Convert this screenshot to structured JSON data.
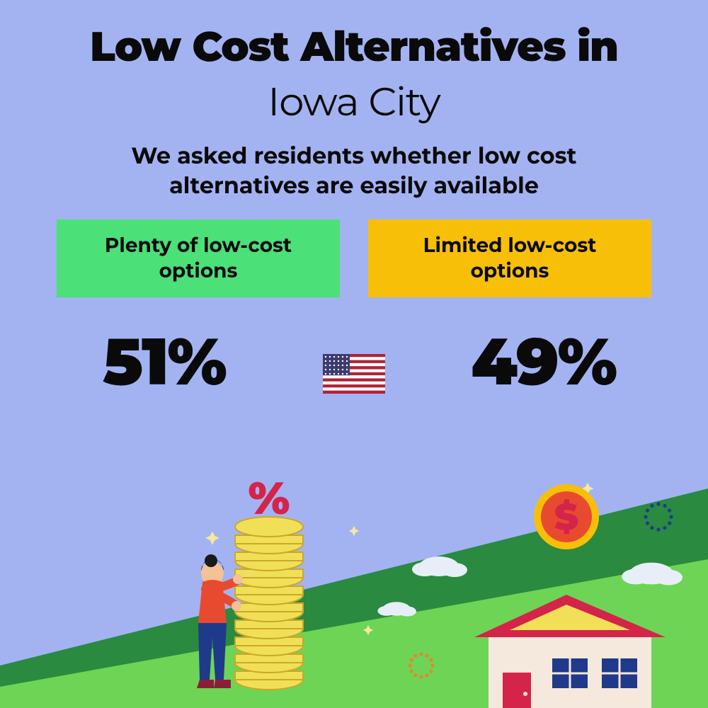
{
  "layout": {
    "background_color": "#a3b3f2",
    "text_color": "#0a0a0a"
  },
  "title": {
    "line1": "Low Cost Alternatives in",
    "line1_fontsize": 58,
    "line1_weight": 900,
    "line2": "Iowa City",
    "line2_fontsize": 56,
    "line2_weight": 400
  },
  "subtitle": {
    "text": "We asked residents whether low cost alternatives are easily available",
    "fontsize": 32,
    "weight": 700
  },
  "options": {
    "left": {
      "label": "Plenty of low-cost options",
      "bg_color": "#4ce078",
      "fontsize": 28,
      "percent": "51%"
    },
    "right": {
      "label": "Limited low-cost options",
      "bg_color": "#f8bf08",
      "fontsize": 28,
      "percent": "49%"
    },
    "percent_fontsize": 92,
    "percent_weight": 900
  },
  "flag": {
    "stripe_red": "#b22234",
    "stripe_white": "#ffffff",
    "canton_blue": "#3c3b6e",
    "star_color": "#ffffff"
  },
  "illustration": {
    "hill_dark": "#2a8a3f",
    "hill_light": "#6dd455",
    "person_top": "#e84a2f",
    "person_pants": "#1f3a8a",
    "person_skin": "#f4c294",
    "person_hair": "#1a1a1a",
    "person_boots": "#8a1e3a",
    "coin_fill": "#f2df58",
    "coin_stroke": "#caa82a",
    "percent_sign": "#d4244a",
    "house_wall": "#f5e8dc",
    "house_roof": "#d4244a",
    "house_roof_top": "#f2df58",
    "house_window": "#1f3a8a",
    "house_door": "#d4244a",
    "dollar_coin_outer": "#f8bf08",
    "dollar_coin_inner": "#e84a2f",
    "dollar_sign": "#d4244a",
    "cloud_color": "#e8eef7",
    "sparkle_color": "#f5e8a0",
    "burst_dark": "#1f3a8a",
    "burst_orange": "#e8852f"
  }
}
